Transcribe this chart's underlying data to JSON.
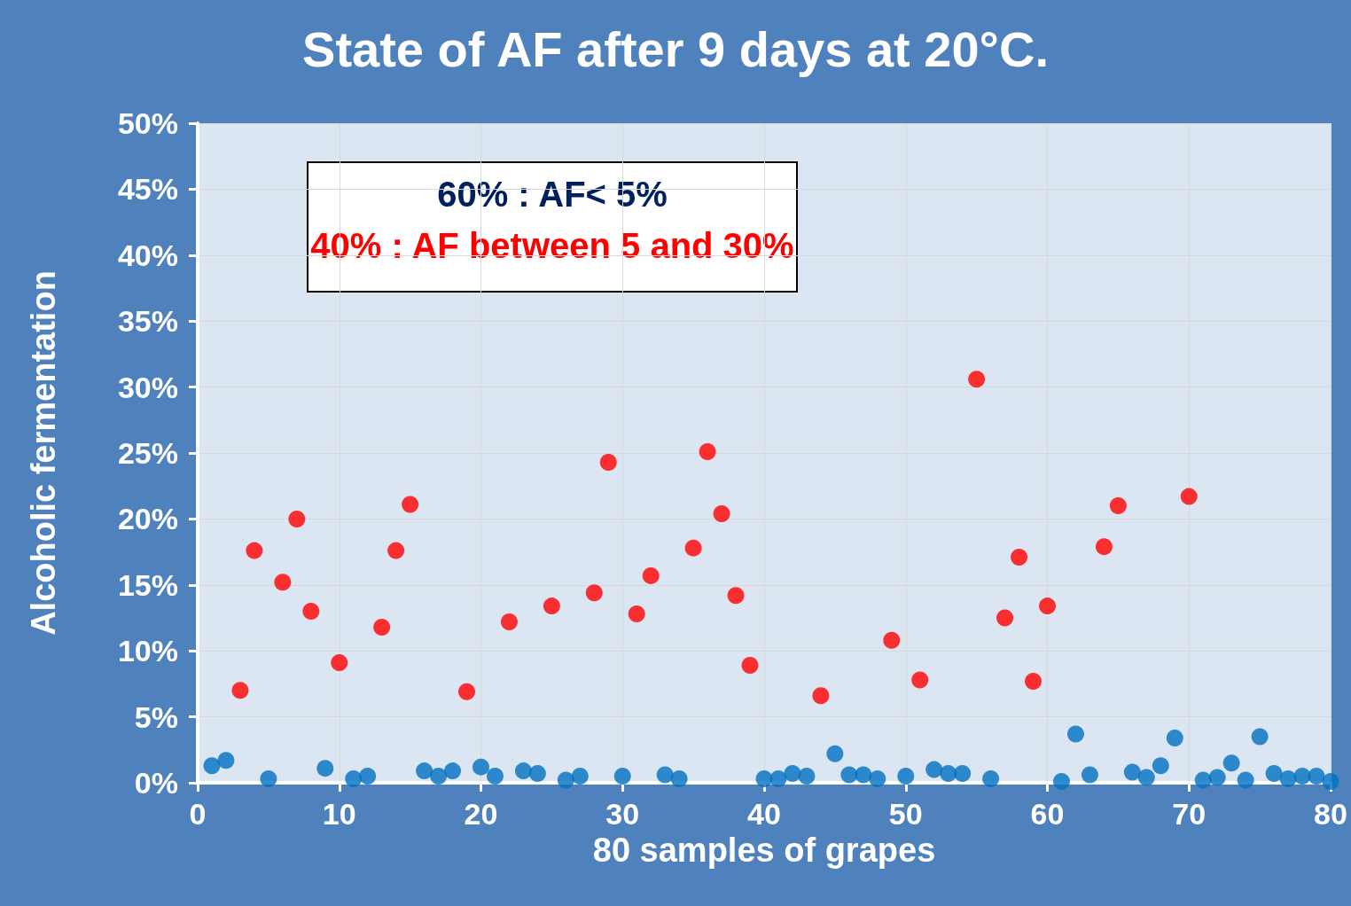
{
  "chart_data": {
    "type": "scatter",
    "title": "State of AF after 9 days at 20°C.",
    "xlabel": "80 samples of grapes",
    "ylabel": "Alcoholic fermentation",
    "annotations": [
      "60% : AF< 5%",
      "40% : AF between 5 and 30%"
    ],
    "series": [
      {
        "color": "#0070c0",
        "x": [
          1,
          2,
          5,
          9,
          11,
          12,
          16,
          17,
          18,
          20,
          21,
          23,
          24,
          26,
          27,
          30,
          33,
          34,
          40,
          41,
          42,
          43,
          45,
          46,
          47,
          48,
          50,
          52,
          53,
          54,
          56,
          61,
          62,
          63,
          66,
          67,
          68,
          69,
          71,
          72,
          73,
          74,
          75,
          76,
          77,
          78,
          79,
          80
        ],
        "values": [
          1.3,
          1.7,
          0.3,
          1.1,
          0.3,
          0.5,
          0.9,
          0.5,
          0.9,
          1.2,
          0.5,
          0.9,
          0.7,
          0.2,
          0.5,
          0.5,
          0.6,
          0.3,
          0.3,
          0.3,
          0.7,
          0.5,
          2.2,
          0.6,
          0.6,
          0.3,
          0.5,
          1.0,
          0.7,
          0.7,
          0.3,
          0.1,
          3.7,
          0.6,
          0.8,
          0.4,
          1.3,
          3.4,
          0.2,
          0.4,
          1.5,
          0.2,
          3.5,
          0.7,
          0.3,
          0.5,
          0.5,
          0.1
        ]
      },
      {
        "color": "#ff0000",
        "x": [
          3,
          4,
          6,
          7,
          8,
          10,
          13,
          14,
          15,
          19,
          22,
          25,
          28,
          29,
          31,
          32,
          35,
          36,
          37,
          38,
          39,
          44,
          49,
          51,
          55,
          57,
          58,
          59,
          60,
          64,
          65,
          70
        ],
        "values": [
          7.0,
          17.6,
          15.2,
          20.0,
          13.0,
          9.1,
          11.8,
          17.6,
          21.1,
          6.9,
          12.2,
          13.4,
          14.4,
          24.3,
          12.8,
          15.7,
          17.8,
          25.1,
          20.4,
          14.2,
          8.9,
          6.6,
          10.8,
          7.8,
          30.6,
          12.5,
          17.1,
          7.7,
          13.4,
          17.9,
          21.0,
          21.7
        ]
      }
    ],
    "xlim": [
      0,
      80
    ],
    "xticks": [
      0,
      10,
      20,
      30,
      40,
      50,
      60,
      70,
      80
    ],
    "ylim": [
      0,
      50
    ],
    "yticks": [
      {
        "value": 0,
        "label": "0%"
      },
      {
        "value": 5,
        "label": "5%"
      },
      {
        "value": 10,
        "label": "10%"
      },
      {
        "value": 15,
        "label": "15%"
      },
      {
        "value": 20,
        "label": "20%"
      },
      {
        "value": 25,
        "label": "25%"
      },
      {
        "value": 30,
        "label": "30%"
      },
      {
        "value": 35,
        "label": "35%"
      },
      {
        "value": 40,
        "label": "40%"
      },
      {
        "value": 45,
        "label": "45%"
      },
      {
        "value": 50,
        "label": "50%"
      }
    ],
    "grid": true,
    "marker": "circle"
  }
}
